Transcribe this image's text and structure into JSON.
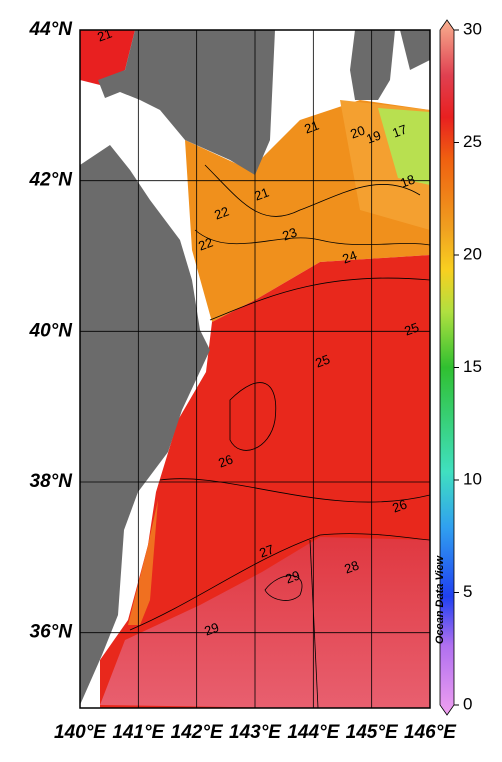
{
  "map": {
    "xlim": [
      140,
      146
    ],
    "ylim": [
      35,
      44
    ],
    "xticks": [
      {
        "value": 140,
        "label": "140°E"
      },
      {
        "value": 141,
        "label": "141°E"
      },
      {
        "value": 142,
        "label": "142°E"
      },
      {
        "value": 143,
        "label": "143°E"
      },
      {
        "value": 144,
        "label": "144°E"
      },
      {
        "value": 145,
        "label": "145°E"
      },
      {
        "value": 146,
        "label": "146°E"
      }
    ],
    "yticks": [
      {
        "value": 36,
        "label": "36°N"
      },
      {
        "value": 38,
        "label": "38°N"
      },
      {
        "value": 40,
        "label": "40°N"
      },
      {
        "value": 42,
        "label": "42°N"
      },
      {
        "value": 44,
        "label": "44°N"
      }
    ],
    "contour_labels": [
      21,
      21,
      20,
      19,
      17,
      18,
      21,
      22,
      22,
      23,
      24,
      25,
      25,
      26,
      26,
      27,
      29,
      28,
      29
    ],
    "colorbar": {
      "lim": [
        0,
        30
      ],
      "ticks": [
        0,
        5,
        10,
        15,
        20,
        25,
        30
      ]
    },
    "watermark": "Ocean Data View"
  }
}
